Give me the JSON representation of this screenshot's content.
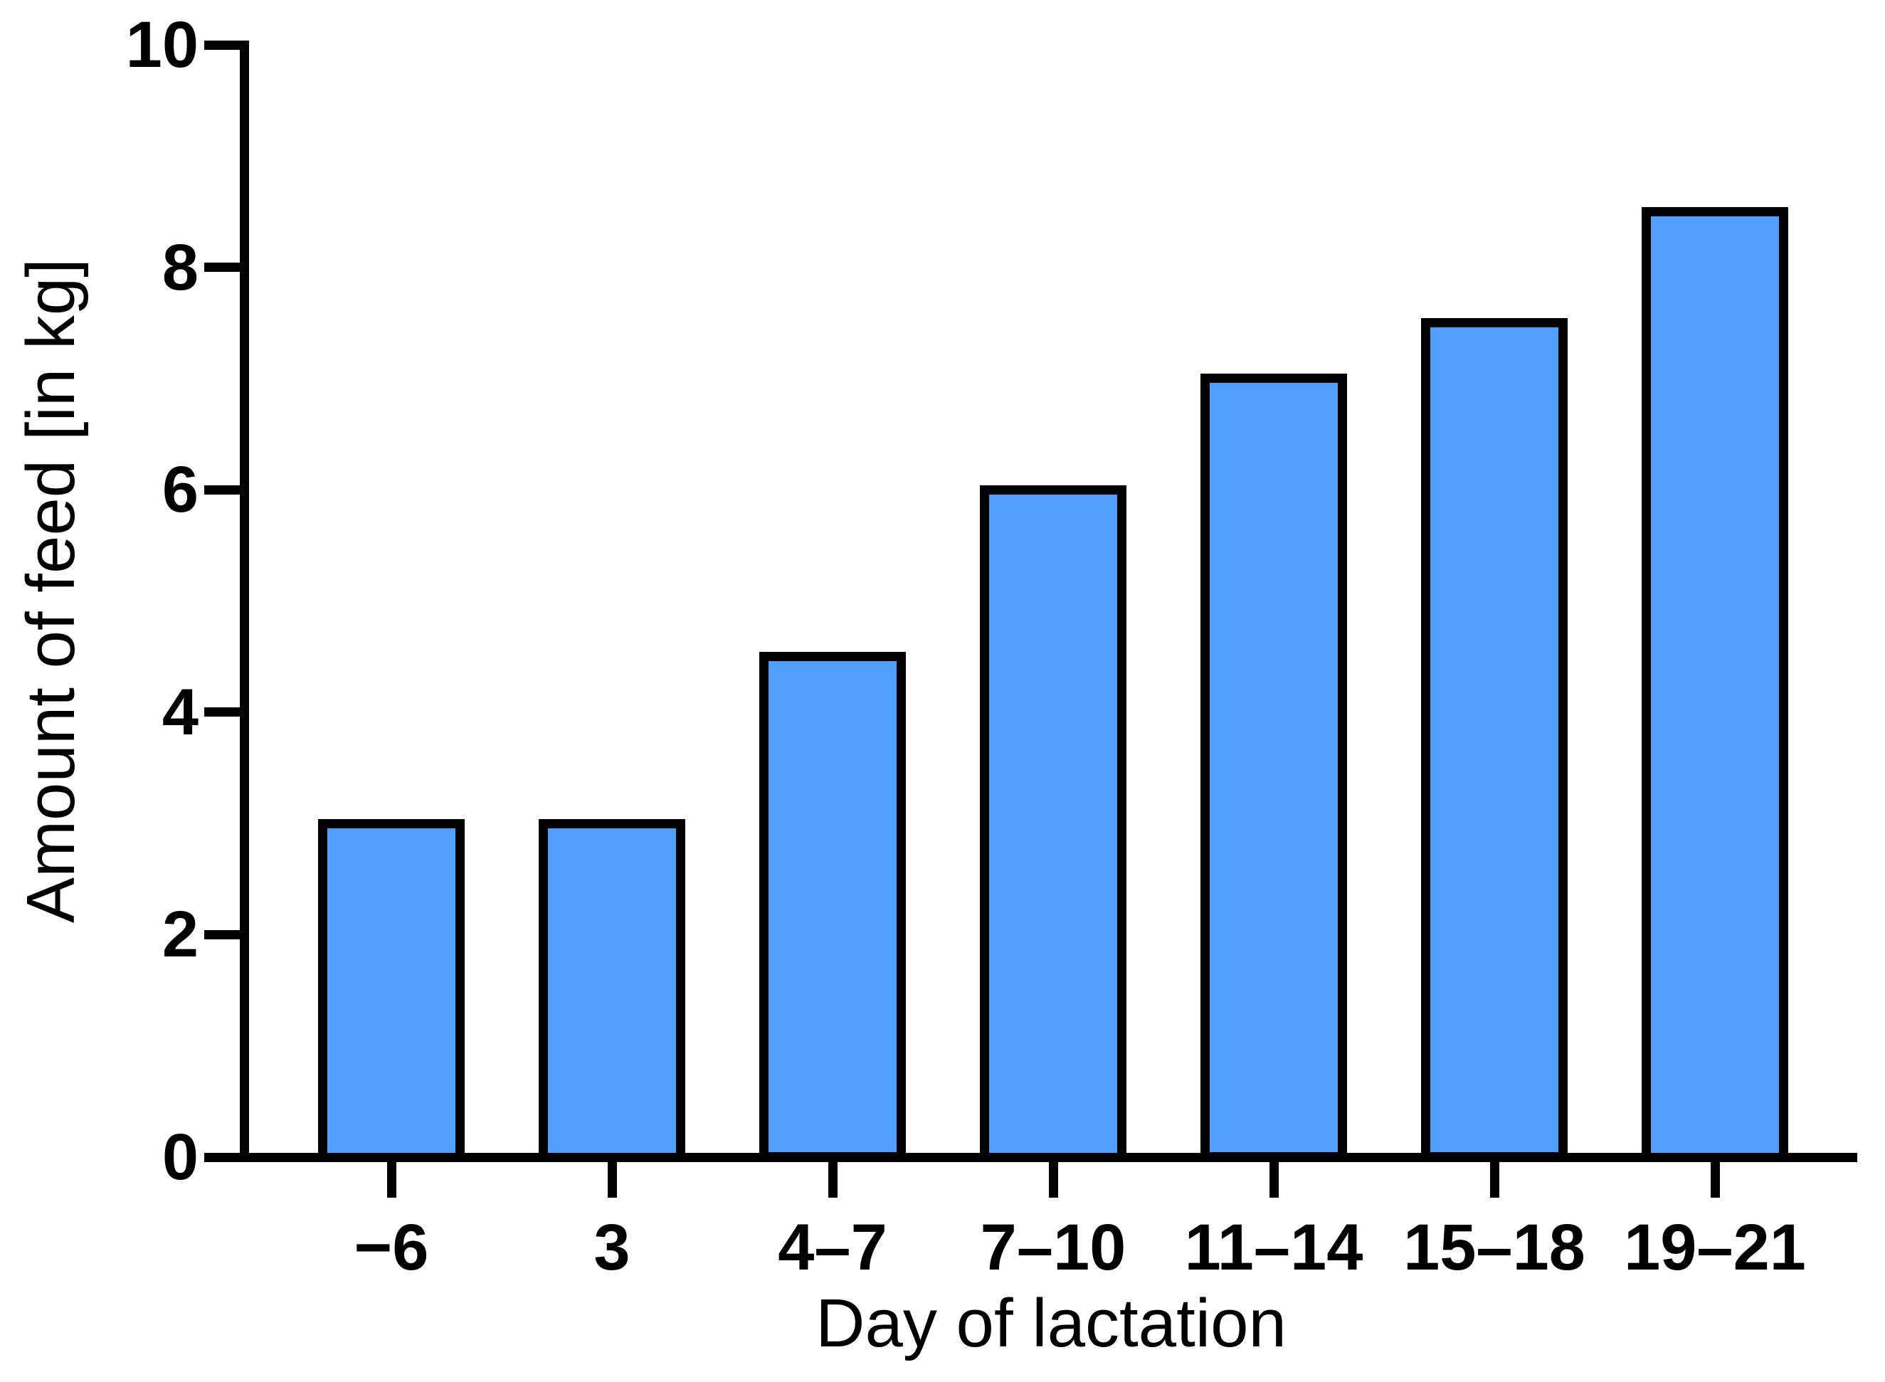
{
  "figure": {
    "background_color": "#ffffff",
    "text_color": "#000000"
  },
  "chart_data": {
    "type": "bar",
    "title": "",
    "xlabel": "Day of lactation",
    "ylabel": "Amount of feed [in kg]",
    "categories": [
      "−6",
      "3",
      "4–7",
      "7–10",
      "11–14",
      "15–18",
      "19–21"
    ],
    "values": [
      3,
      3,
      4.5,
      6,
      7,
      7.5,
      8.5
    ],
    "series": [
      {
        "name": "Amount of feed",
        "values": [
          3,
          3,
          4.5,
          6,
          7,
          7.5,
          8.5
        ]
      }
    ],
    "ylim": [
      0,
      10
    ],
    "yticks": [
      0,
      2,
      4,
      6,
      8,
      10
    ],
    "ytick_labels": [
      "0",
      "2",
      "4",
      "6",
      "8",
      "10"
    ],
    "grid": false,
    "legend_position": "none",
    "bar_fill_color": "#529EFA",
    "bar_border_color": "#000000",
    "axis_color": "#000000"
  }
}
